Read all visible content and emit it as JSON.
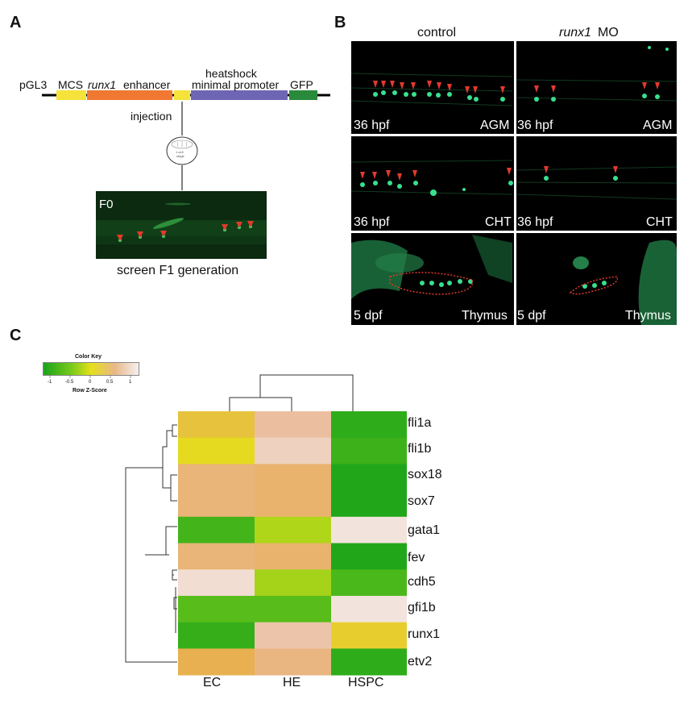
{
  "panels": {
    "a": "A",
    "b": "B",
    "c": "C"
  },
  "construct": {
    "vector": "pGL3",
    "mcs": "MCS",
    "enhancer_gene": "runx1",
    "enhancer_word": "enhancer",
    "promoter_line1": "heatshock",
    "promoter_line2": "minimal promoter",
    "reporter": "GFP",
    "injection": "injection",
    "embryo_line1": "1-cell",
    "embryo_line2": "stage",
    "f0_tag": "F0",
    "screen_caption": "screen F1 generation",
    "colors": {
      "mcs": "#f5e23a",
      "enhancer": "#f07832",
      "spacer": "#f5e23a",
      "promoter": "#6e66b4",
      "gfp": "#2a8a3c"
    }
  },
  "micrographs": {
    "col_control": "control",
    "col_mo_gene": "runx1",
    "col_mo_suffix": "MO",
    "rows": [
      {
        "stage": "36 hpf",
        "region": "AGM"
      },
      {
        "stage": "36 hpf",
        "region": "CHT"
      },
      {
        "stage": "5 dpf",
        "region": "Thymus"
      }
    ]
  },
  "color_key": {
    "title": "Color Key",
    "xlabel": "Row Z-Score",
    "ticks": [
      "-1",
      "-0.5",
      "0",
      "0.5",
      "1"
    ]
  },
  "chart_data": {
    "type": "heatmap",
    "columns": [
      "EC",
      "HE",
      "HSPC"
    ],
    "rows": [
      "fli1a",
      "fli1b",
      "sox18",
      "sox7",
      "gata1",
      "fev",
      "cdh5",
      "gfi1b",
      "runx1",
      "etv2"
    ],
    "scale_label": "Row Z-Score",
    "scale_range": [
      -1,
      1
    ],
    "values": [
      [
        0.25,
        0.8,
        -1.05
      ],
      [
        0.05,
        0.95,
        -0.95
      ],
      [
        0.6,
        0.55,
        -1.15
      ],
      [
        0.6,
        0.55,
        -1.15
      ],
      [
        -0.9,
        -0.25,
        1.1
      ],
      [
        0.6,
        0.55,
        -1.15
      ],
      [
        1.05,
        -0.3,
        -0.85
      ],
      [
        -0.75,
        -0.75,
        1.1
      ],
      [
        -1.0,
        0.85,
        0.15
      ],
      [
        0.4,
        0.65,
        -1.05
      ]
    ]
  }
}
